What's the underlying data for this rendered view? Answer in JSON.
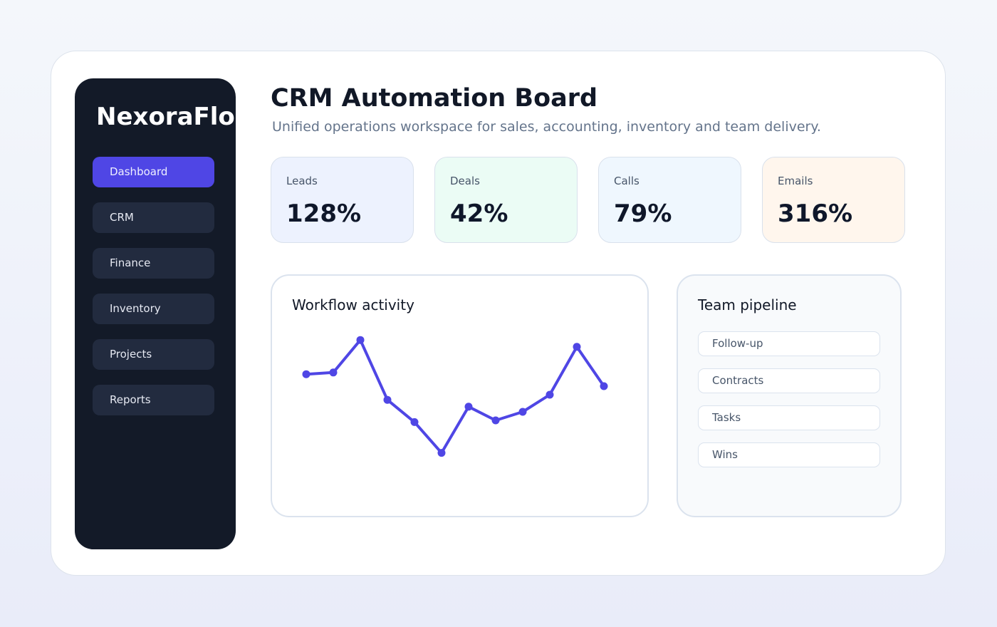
{
  "brand": "NexoraFlow",
  "nav": [
    {
      "label": "Dashboard",
      "active": true
    },
    {
      "label": "CRM",
      "active": false
    },
    {
      "label": "Finance",
      "active": false
    },
    {
      "label": "Inventory",
      "active": false
    },
    {
      "label": "Projects",
      "active": false
    },
    {
      "label": "Reports",
      "active": false
    }
  ],
  "header": {
    "title": "CRM Automation Board",
    "subtitle": "Unified operations workspace for sales, accounting, inventory and team delivery."
  },
  "stats": [
    {
      "label": "Leads",
      "value": "128%",
      "bg": "#edf2fe"
    },
    {
      "label": "Deals",
      "value": "42%",
      "bg": "#ebfcf5"
    },
    {
      "label": "Calls",
      "value": "79%",
      "bg": "#eff7fe"
    },
    {
      "label": "Emails",
      "value": "316%",
      "bg": "#fff6ed"
    }
  ],
  "workflow": {
    "title": "Workflow activity",
    "line_color": "#4f46e5"
  },
  "chart_data": {
    "type": "line",
    "x": [
      1,
      2,
      3,
      4,
      5,
      6,
      7,
      8,
      9,
      10,
      11,
      12
    ],
    "values": [
      62,
      63,
      82,
      47,
      34,
      16,
      43,
      35,
      40,
      50,
      78,
      55
    ],
    "ylim": [
      0,
      100
    ],
    "grid": false,
    "title": "",
    "xlabel": "",
    "ylabel": ""
  },
  "pipeline": {
    "title": "Team pipeline",
    "items": [
      "Follow-up",
      "Contracts",
      "Tasks",
      "Wins"
    ]
  }
}
